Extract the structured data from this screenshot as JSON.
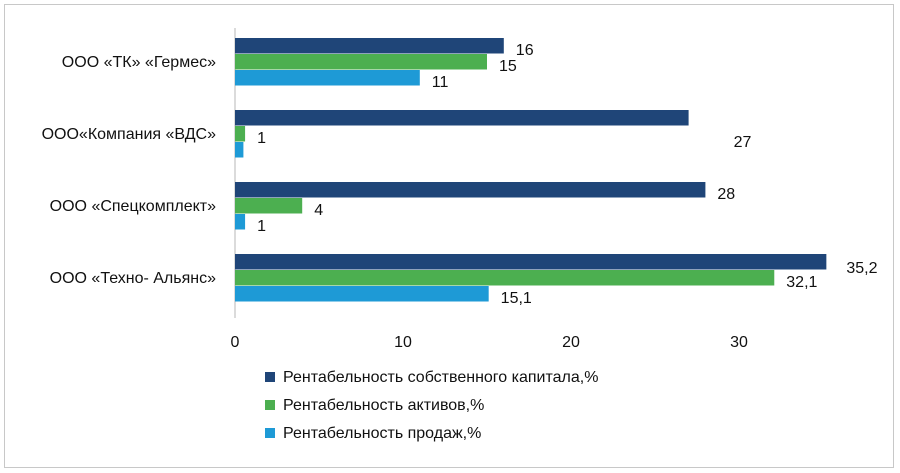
{
  "chart_data": {
    "type": "bar",
    "orientation": "horizontal",
    "categories": [
      "ООО «ТК» «Гермес»",
      "ООО«Компания «ВДС»",
      "ООО «Спецкомплект»",
      "ООО «Техно- Альянс»"
    ],
    "series": [
      {
        "name": "Рентабельность собственного капитала,%",
        "color": "#1f4578",
        "values": [
          16,
          27,
          28,
          35.2
        ],
        "labels": [
          "16",
          "27",
          "28",
          "35,2"
        ]
      },
      {
        "name": "Рентабельность активов,%",
        "color": "#4caf50",
        "values": [
          15,
          0.6,
          4,
          32.1
        ],
        "labels": [
          "15",
          "1",
          "4",
          "32,1"
        ]
      },
      {
        "name": "Рентабельность продаж,%",
        "color": "#1e9ad6",
        "values": [
          11,
          0.5,
          0.6,
          15.1
        ],
        "labels": [
          "11",
          "",
          "1",
          "15,1"
        ]
      }
    ],
    "xticks": [
      0,
      10,
      20,
      30
    ],
    "xlim": [
      0,
      35.2
    ],
    "grid": false,
    "legend": "bottom"
  }
}
